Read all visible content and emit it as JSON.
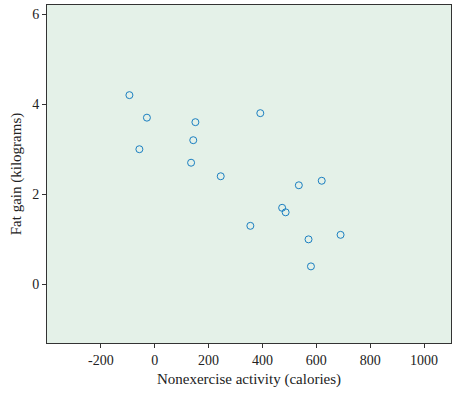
{
  "chart_data": {
    "type": "scatter",
    "x_label": "Nonexercise activity (calories)",
    "y_label": "Fat gain (kilograms)",
    "x": [
      -94,
      -57,
      -29,
      135,
      143,
      151,
      245,
      355,
      392,
      473,
      486,
      535,
      571,
      580,
      620,
      690
    ],
    "values": [
      4.2,
      3.0,
      3.7,
      2.7,
      3.2,
      3.6,
      2.4,
      1.3,
      3.8,
      1.7,
      1.6,
      2.2,
      1.0,
      0.4,
      2.3,
      1.1
    ],
    "color": "#1a7fc1",
    "marker": "circle-open",
    "xlim": [
      -400,
      1100
    ],
    "xticks": [
      -200,
      0,
      200,
      400,
      600,
      800,
      1000
    ],
    "ylim": [
      -1.3,
      6.2
    ],
    "yticks": [
      0,
      2,
      4,
      6
    ],
    "grid": false
  }
}
